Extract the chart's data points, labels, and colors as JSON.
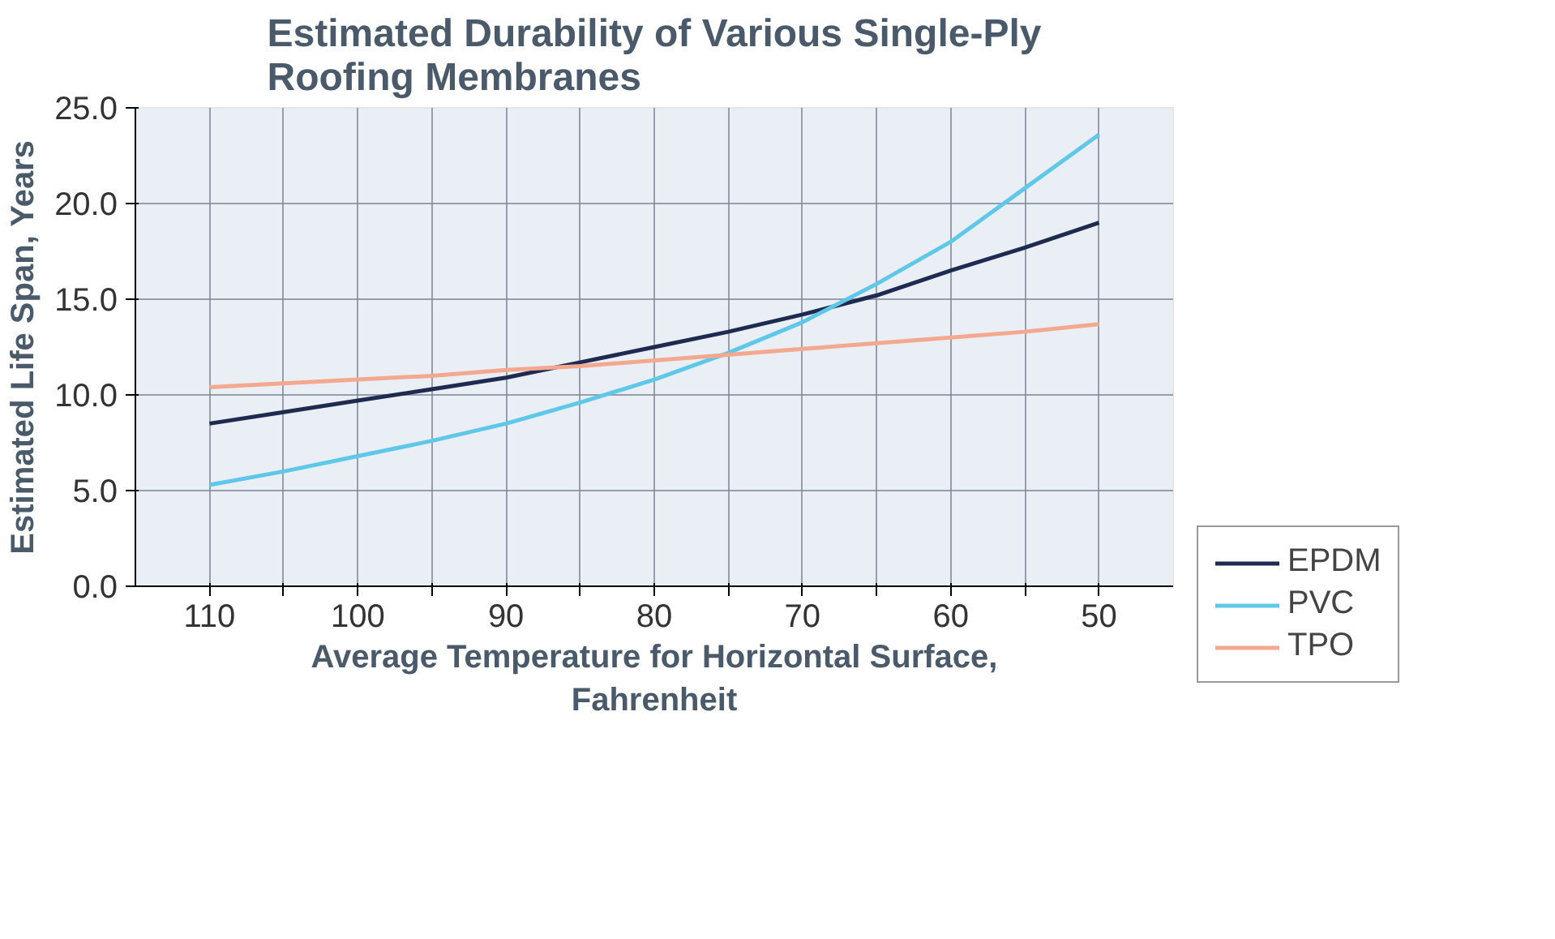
{
  "chart_data": {
    "type": "line",
    "title": "Estimated Durability of Various Single-Ply Roofing Membranes",
    "xlabel": "Average Temperature for Horizontal Surface, Fahrenheit",
    "ylabel": "Estimated Life Span, Years",
    "x": [
      110,
      105,
      100,
      95,
      90,
      85,
      80,
      75,
      70,
      65,
      60,
      55,
      50
    ],
    "xlim": [
      115,
      45
    ],
    "xticks": [
      110,
      {
        "value": 105,
        "label": null
      },
      100,
      {
        "value": 95,
        "label": null
      },
      90,
      {
        "value": 85,
        "label": null
      },
      80,
      {
        "value": 75,
        "label": null
      },
      70,
      {
        "value": 65,
        "label": null
      },
      60,
      {
        "value": 55,
        "label": null
      },
      50
    ],
    "ylim": [
      0,
      25
    ],
    "yticks": [
      {
        "value": 0,
        "label": "0.0"
      },
      {
        "value": 5,
        "label": "5.0"
      },
      {
        "value": 10,
        "label": "10.0"
      },
      {
        "value": 15,
        "label": "15.0"
      },
      {
        "value": 20,
        "label": "20.0"
      },
      {
        "value": 25,
        "label": "25.0"
      }
    ],
    "series": [
      {
        "name": "EPDM",
        "color": "#1f2a50",
        "values": [
          8.5,
          9.1,
          9.7,
          10.3,
          10.9,
          11.7,
          12.5,
          13.3,
          14.2,
          15.2,
          16.5,
          17.7,
          19.0
        ]
      },
      {
        "name": "PVC",
        "color": "#5fc8e8",
        "values": [
          5.3,
          6.0,
          6.8,
          7.6,
          8.5,
          9.6,
          10.8,
          12.2,
          13.8,
          15.8,
          18.0,
          20.8,
          23.6
        ]
      },
      {
        "name": "TPO",
        "color": "#f4a890",
        "values": [
          10.4,
          10.6,
          10.8,
          11.0,
          11.3,
          11.5,
          11.8,
          12.1,
          12.4,
          12.7,
          13.0,
          13.3,
          13.7
        ]
      }
    ],
    "grid": true,
    "legend": "right",
    "marker": "none",
    "line_style": "solid"
  }
}
